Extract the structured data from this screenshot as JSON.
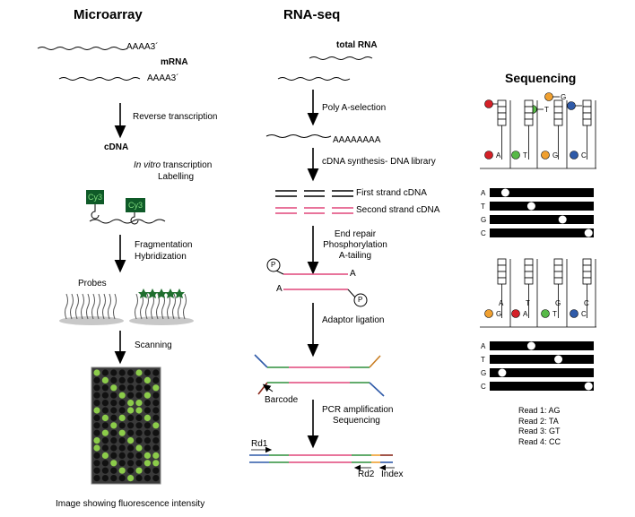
{
  "microarray": {
    "title": "Microarray",
    "mrna_label": "mRNA",
    "polyA_1": "AAAA3´",
    "polyA_2": "AAAA3´",
    "step_rt": "Reverse transcription",
    "cdna": "cDNA",
    "ivt_italic": "In vitro",
    "ivt_rest": " transcription",
    "labelling": "Labelling",
    "cy3_a": "Cy3",
    "cy3_b": "Cy3",
    "fragmentation": "Fragmentation",
    "hybridization": "Hybridization",
    "probes": "Probes",
    "scanning": "Scanning",
    "image_caption": "Image showing fluorescence intensity"
  },
  "rnaseq": {
    "title": "RNA-seq",
    "total_rna": "total RNA",
    "polyA_selection": "Poly A-selection",
    "polyA_tail": "AAAAAAAA",
    "cdna_synthesis": "cDNA synthesis- DNA library",
    "first_strand": "First strand cDNA",
    "second_strand": "Second strand cDNA",
    "end_repair": "End repair",
    "phosphorylation": "Phosphorylation",
    "a_tailing": "A-tailing",
    "p1": "P",
    "p2": "P",
    "a1": "A",
    "a2": "A",
    "adaptor_ligation": "Adaptor ligation",
    "barcode": "Barcode",
    "pcr": "PCR amplification",
    "sequencing": "Sequencing",
    "rd1": "Rd1",
    "rd2": "Rd2",
    "index": "Index"
  },
  "sequencing": {
    "title": "Sequencing",
    "top_bases": [
      "A",
      "T",
      "G",
      "C"
    ],
    "cycle1_called": [
      "A",
      "T",
      "G",
      "C"
    ],
    "cycle2_called": [
      "G",
      "A",
      "T",
      "C"
    ],
    "cycle2_prev": [
      "A",
      "T",
      "G",
      "C"
    ],
    "reads": [
      "Read 1: AG",
      "Read 2: TA",
      "Read 3: GT",
      "Read 4: CC"
    ]
  },
  "colors": {
    "A": "#d42027",
    "T": "#57b947",
    "G": "#f0a030",
    "C": "#2f5aa8",
    "pink": "#e0477a",
    "green": "#2f8f3c",
    "cy3": "#0f5a28"
  }
}
